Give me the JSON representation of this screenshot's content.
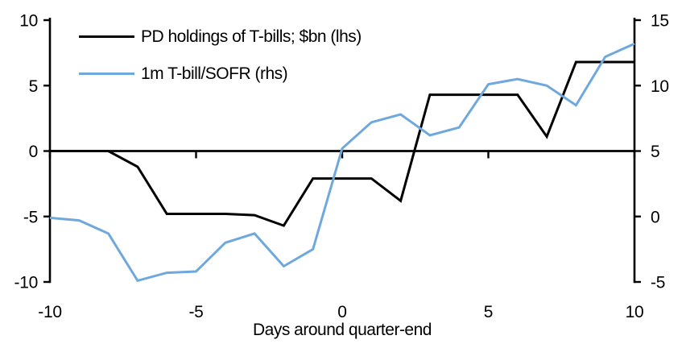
{
  "chart_data": {
    "type": "line",
    "title": "",
    "xlabel": "Days around quarter-end",
    "ylabel": "",
    "grid": false,
    "legend_position": "top-left",
    "background_color": "#ffffff",
    "axis_color": "#000000",
    "text_color": "#000000",
    "x": [
      -10,
      -9,
      -8,
      -7,
      -6,
      -5,
      -4,
      -3,
      -2,
      -1,
      0,
      1,
      2,
      3,
      4,
      5,
      6,
      7,
      8,
      9,
      10
    ],
    "series": [
      {
        "id": "pd-holdings",
        "name": "PD holdings of T-bills; $bn (lhs)",
        "axis": "left",
        "color": "#000000",
        "values": [
          0,
          0,
          0,
          -1.2,
          -4.8,
          -4.8,
          -4.8,
          -4.9,
          -5.7,
          -2.1,
          -2.1,
          -2.1,
          -3.8,
          4.3,
          4.3,
          4.3,
          4.3,
          1.1,
          6.8,
          6.8,
          6.8
        ]
      },
      {
        "id": "tbill-sofr",
        "name": "1m T-bill/SOFR (rhs)",
        "axis": "right",
        "color": "#6FA8DC",
        "values": [
          -0.1,
          -0.3,
          -1.3,
          -4.9,
          -4.3,
          -4.2,
          -2.0,
          -1.3,
          -3.8,
          -2.5,
          5.2,
          7.2,
          7.8,
          6.2,
          6.8,
          10.1,
          10.5,
          10.0,
          8.5,
          12.2,
          13.2
        ]
      }
    ],
    "left_axis": {
      "ticks": [
        10,
        5,
        0,
        -5,
        -10
      ],
      "range": [
        -10,
        10
      ]
    },
    "right_axis": {
      "ticks": [
        15,
        10,
        5,
        0,
        -5
      ],
      "range": [
        -5,
        15
      ]
    },
    "x_axis": {
      "ticks": [
        -10,
        -5,
        0,
        5,
        10
      ],
      "range": [
        -10,
        10
      ]
    },
    "zero_line": true
  }
}
